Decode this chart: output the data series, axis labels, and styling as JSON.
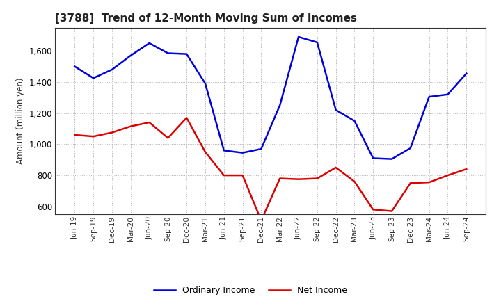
{
  "title": "[3788]  Trend of 12-Month Moving Sum of Incomes",
  "ylabel": "Amount (million yen)",
  "x_labels": [
    "Jun-19",
    "Sep-19",
    "Dec-19",
    "Mar-20",
    "Jun-20",
    "Sep-20",
    "Dec-20",
    "Mar-21",
    "Jun-21",
    "Sep-21",
    "Dec-21",
    "Mar-22",
    "Jun-22",
    "Sep-22",
    "Dec-22",
    "Mar-23",
    "Jun-23",
    "Sep-23",
    "Dec-23",
    "Mar-24",
    "Jun-24",
    "Sep-24"
  ],
  "ordinary_income": [
    1500,
    1425,
    1480,
    1570,
    1650,
    1585,
    1580,
    1390,
    960,
    945,
    970,
    1250,
    1690,
    1655,
    1220,
    1150,
    910,
    905,
    975,
    1305,
    1320,
    1455
  ],
  "net_income": [
    1060,
    1050,
    1075,
    1115,
    1140,
    1040,
    1170,
    950,
    800,
    800,
    510,
    780,
    775,
    780,
    850,
    760,
    580,
    570,
    750,
    755,
    800,
    840
  ],
  "ordinary_income_color": "#0000dd",
  "net_income_color": "#dd0000",
  "ylim_min": 550,
  "ylim_max": 1750,
  "yticks": [
    600,
    800,
    1000,
    1200,
    1400,
    1600
  ],
  "background_color": "#ffffff",
  "grid_color": "#aaaaaa",
  "legend_labels": [
    "Ordinary Income",
    "Net Income"
  ]
}
